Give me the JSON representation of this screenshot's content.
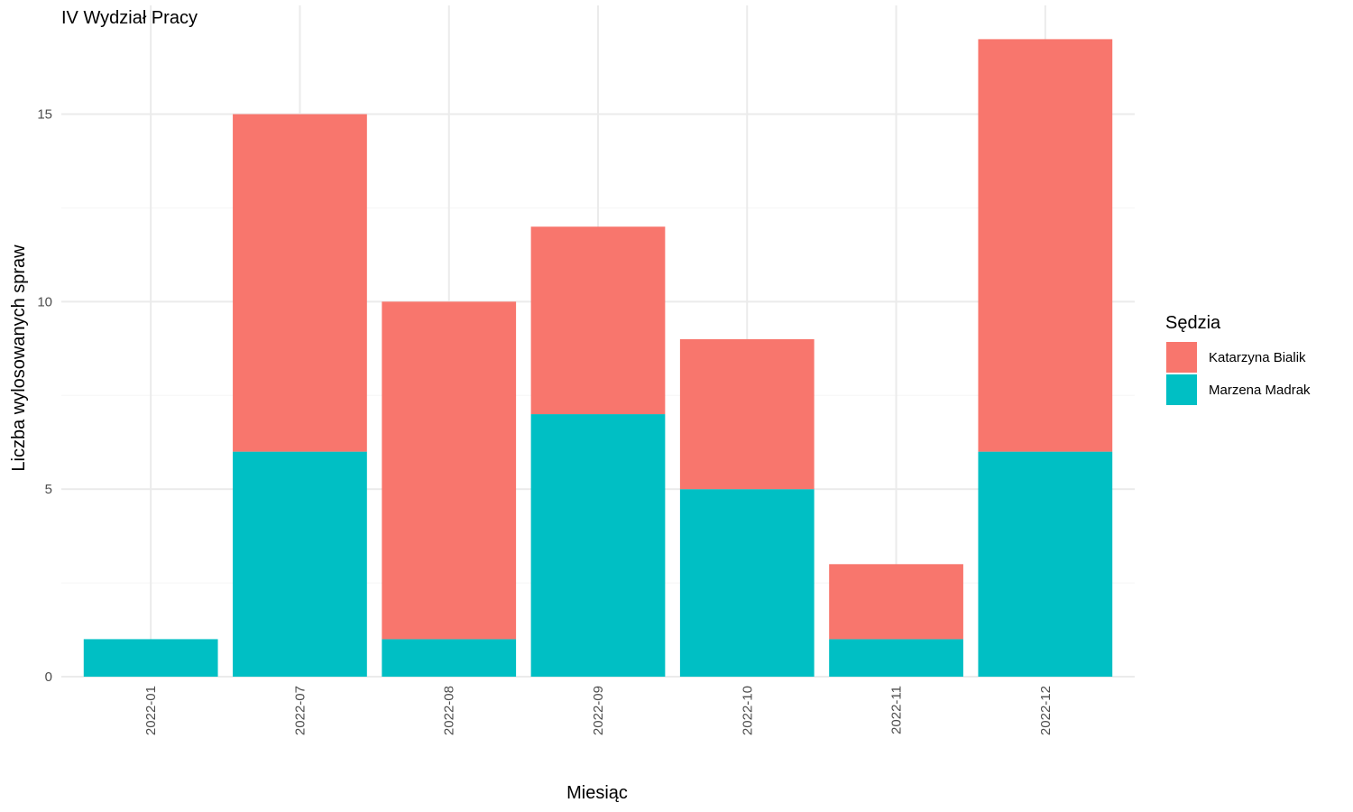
{
  "chart_data": {
    "type": "bar",
    "stacked": true,
    "title": "IV Wydział Pracy",
    "xlabel": "Miesiąc",
    "ylabel": "Liczba wylosowanych spraw",
    "categories": [
      "2022-01",
      "2022-07",
      "2022-08",
      "2022-09",
      "2022-10",
      "2022-11",
      "2022-12"
    ],
    "series": [
      {
        "name": "Marzena Madrak",
        "color": "#00BFC4",
        "values": [
          1,
          6,
          1,
          7,
          5,
          1,
          6
        ]
      },
      {
        "name": "Katarzyna Bialik",
        "color": "#F8766D",
        "values": [
          0,
          9,
          9,
          5,
          4,
          2,
          11
        ]
      }
    ],
    "ylim": [
      0,
      17
    ],
    "yticks": [
      0,
      5,
      10,
      15
    ],
    "grid": true,
    "legend": {
      "title": "Sędzia",
      "position": "right",
      "entries": [
        "Katarzyna Bialik",
        "Marzena Madrak"
      ]
    }
  }
}
